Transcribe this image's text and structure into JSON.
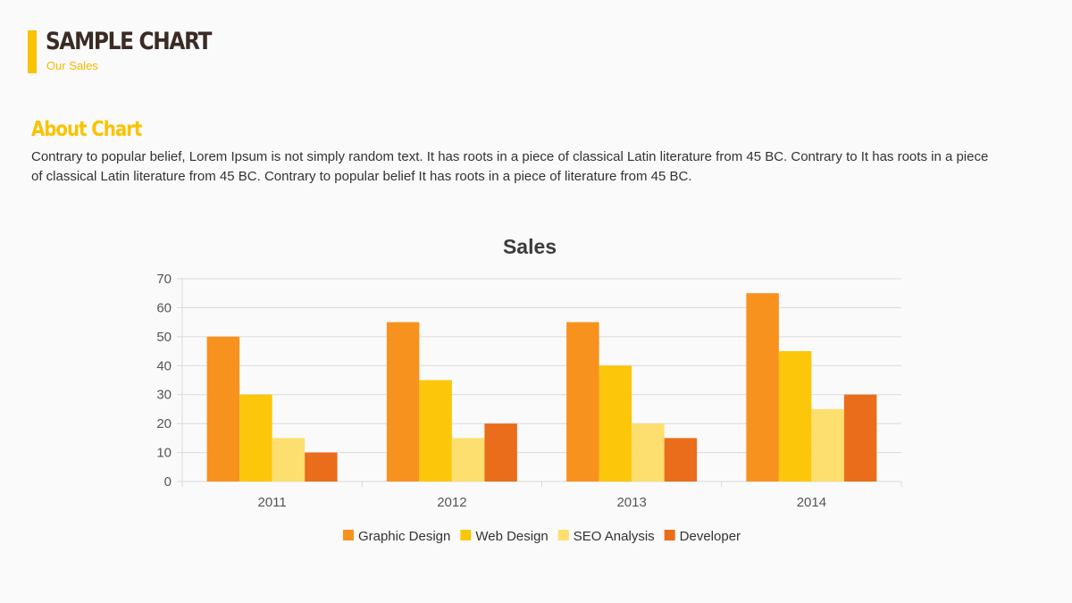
{
  "header": {
    "title": "SAMPLE CHART",
    "subtitle": "Our Sales"
  },
  "about": {
    "title": "About Chart",
    "text": "Contrary to popular belief, Lorem Ipsum is not simply random text. It has roots in a piece of classical Latin literature from 45 BC. Contrary to It has roots in a piece of classical Latin literature from 45 BC. Contrary to popular belief It has roots in a piece of literature from 45 BC."
  },
  "colors": {
    "accent": "#f9c300",
    "title_dark": "#3b2b25",
    "series": [
      "#f7921e",
      "#fcc60a",
      "#fddf6f",
      "#ea6d1b"
    ]
  },
  "chart_data": {
    "type": "bar",
    "title": "Sales",
    "categories": [
      "2011",
      "2012",
      "2013",
      "2014"
    ],
    "series": [
      {
        "name": "Graphic Design",
        "values": [
          50,
          55,
          55,
          65
        ]
      },
      {
        "name": "Web Design",
        "values": [
          30,
          35,
          40,
          45
        ]
      },
      {
        "name": "SEO Analysis",
        "values": [
          15,
          15,
          20,
          25
        ]
      },
      {
        "name": "Developer",
        "values": [
          10,
          20,
          15,
          30
        ]
      }
    ],
    "ylim": [
      0,
      70
    ],
    "yticks": [
      0,
      10,
      20,
      30,
      40,
      50,
      60,
      70
    ],
    "grid": true,
    "legend": "bottom"
  }
}
